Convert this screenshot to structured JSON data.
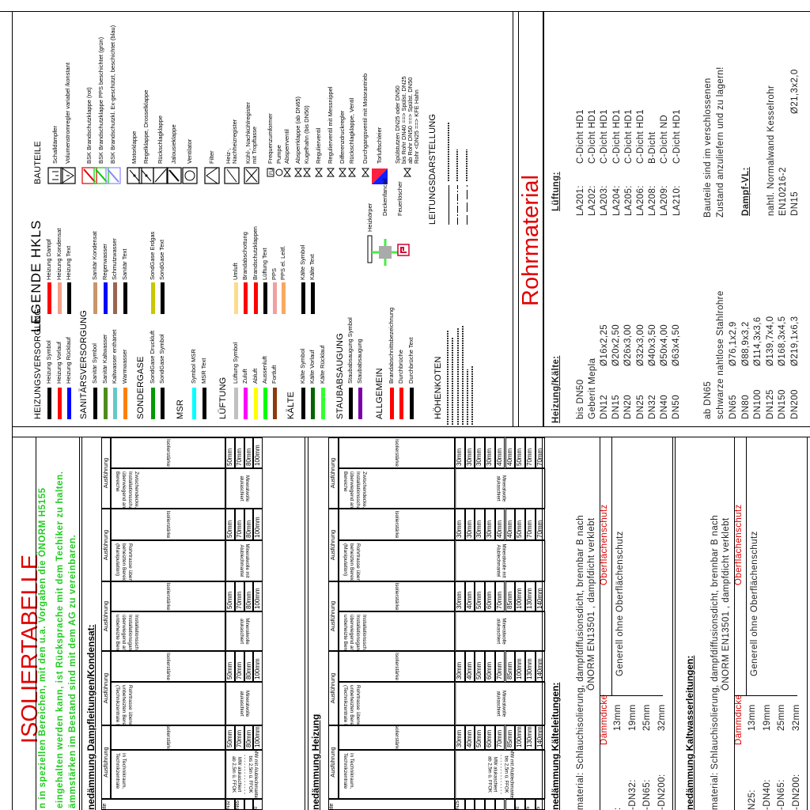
{
  "legend": {
    "title": "LEGENDE HKLS",
    "col1": [
      {
        "heading": "HEIZUNGSVERSORGUNG",
        "items": [
          {
            "label": "Heizung Symbol",
            "color": "#000000"
          },
          {
            "label": "Heizung Vorlauf",
            "color": "#ff0000"
          },
          {
            "label": "Heizung Rücklauf",
            "color": "#0000ff"
          }
        ]
      },
      {
        "heading": "SANITÄRSVERSORGUNG",
        "items": [
          {
            "label": "Sanitär Symbol",
            "color": "#000000"
          },
          {
            "label": "Sanitär Kaltwasser",
            "color": "#4c8c1c"
          },
          {
            "label": "Kaltwasser enthärtet",
            "color": "#66c8c8"
          },
          {
            "label": "Warmwasser",
            "color": "#ff8000"
          }
        ]
      },
      {
        "heading": "SONDERGASE",
        "items": [
          {
            "label": "SondGase Druckluft",
            "color": "#009a00"
          },
          {
            "label": "SondGase Symbol",
            "color": "#000000"
          }
        ]
      },
      {
        "heading": "MSR",
        "items": [
          {
            "label": "Symbol MSR",
            "color": "#00ffff"
          },
          {
            "label": "MSR Text",
            "color": "#000000"
          }
        ]
      },
      {
        "heading": "LÜFTUNG",
        "items": [
          {
            "label": "Lüftung Symbol",
            "color": "#c0c0c0"
          },
          {
            "label": "Zuluft",
            "color": "#ff00ff"
          },
          {
            "label": "Abluft",
            "color": "#ffff00"
          },
          {
            "label": "Aussenluft",
            "color": "#00ff00"
          },
          {
            "label": "Fortluft",
            "color": "#8c3a0c"
          }
        ]
      },
      {
        "heading": "KÄLTE",
        "items": [
          {
            "label": "Kälte Symbol",
            "color": "#000000"
          },
          {
            "label": "Kälte Vorlauf",
            "color": "#006400"
          },
          {
            "label": "Kälte Rücklauf",
            "color": "#33ff33"
          }
        ]
      },
      {
        "heading": "STAUBABSAUGUNG",
        "items": [
          {
            "label": "Staubabsaugung Symbol",
            "color": "#000000"
          },
          {
            "label": "Staubabsaugung",
            "color": "#7a00a8"
          }
        ]
      },
      {
        "heading": "ALLGEMEIN",
        "items": [
          {
            "label": "Brandabschnittsbezeichnung",
            "color": "#ff0000"
          },
          {
            "label": "Durchbrüche",
            "color": "#ff0000"
          },
          {
            "label": "Durchbrüche Text",
            "color": "#000000"
          }
        ]
      },
      {
        "heading": "HÖHENKOTEN",
        "items": []
      }
    ],
    "col2": [
      {
        "label": "Heizung Dampf",
        "color": "#ff0000"
      },
      {
        "label": "Heizung Kondensat",
        "color": "#f4a088"
      },
      {
        "label": "Heizung Text",
        "color": "#000000"
      },
      {
        "label": "Sanitär Kondensat",
        "color": "#c8966a"
      },
      {
        "label": "Regenwasser",
        "color": "#0000ff"
      },
      {
        "label": "Schmutzwasser",
        "color": "#9c6450"
      },
      {
        "label": "Sanitär Text",
        "color": "#000000"
      },
      {
        "label": "SondGase Erdgas",
        "color": "#c8c800"
      },
      {
        "label": "SondGase Text",
        "color": "#000000"
      },
      {
        "label": "Umluft",
        "color": "#fcdc8c"
      },
      {
        "label": "Brandabschottung",
        "color": "#ff0000"
      },
      {
        "label": "Brandschutzklappen",
        "color": "#ff0000"
      },
      {
        "label": "Lüftung Text",
        "color": "#000000"
      },
      {
        "label": "PPS",
        "color": "#f0a0a0"
      },
      {
        "label": "PPS el. Leitf.",
        "color": "#f8a860"
      },
      {
        "label": "Kälte Symbol",
        "color": "#000000"
      },
      {
        "label": "Kälte Text",
        "color": "#000000"
      }
    ],
    "bauteile_heading": "BAUTEILE",
    "bauteile": [
      {
        "label": "Schalldämpfer",
        "icon": "silencer-icon"
      },
      {
        "label": "Volumenstromregler variabel /konstant",
        "icon": "vav-icon"
      },
      {
        "label": "BSK Brandschutzklappe (rot)",
        "icon": "fire-damper-icon",
        "color": "#e00000"
      },
      {
        "label": "BSK Brandschutzklappe PPS beschichtet (grün)",
        "icon": "fire-damper-icon",
        "color": "#00cc00"
      },
      {
        "label": "BSK Brandschutzkl. Ex-geschützt, beschichtet (blau)",
        "icon": "fire-damper-icon",
        "color": "#8888ff"
      },
      {
        "label": "Motorklappe",
        "icon": "motor-damper-icon"
      },
      {
        "label": "Regelklappe, Drosselklappe",
        "icon": "damper-icon"
      },
      {
        "label": "Rückschlagklappe",
        "icon": "check-damper-icon"
      },
      {
        "label": "Jalousieklappe",
        "icon": "louver-icon"
      },
      {
        "label": "Ventilator",
        "icon": "fan-icon"
      },
      {
        "label": "Filter",
        "icon": "filter-icon"
      },
      {
        "label": "Heiz-,\nNachheizregister",
        "icon": "heater-coil-icon"
      },
      {
        "label": "Kühl-, Nachkühlregister\nmit Tropftasse",
        "icon": "cooler-coil-icon"
      },
      {
        "label": "Frequenzumformer",
        "icon": "fu-icon"
      },
      {
        "label": "Pumpe",
        "icon": "pump-icon"
      },
      {
        "label": "Absperrventil",
        "icon": "valve-icon"
      },
      {
        "label": "Absperrklappe (ab DN65)",
        "icon": "butterfly-valve-icon"
      },
      {
        "label": "Kugelhahn (bis DN50)",
        "icon": "ball-valve-icon"
      },
      {
        "label": "Regulierventil",
        "icon": "regulating-valve-icon"
      },
      {
        "label": "Regulierventil mit Messnippel",
        "icon": "regulating-valve-icon"
      },
      {
        "label": "Differenzdruckregler",
        "icon": "dp-regulator-icon"
      },
      {
        "label": "Rückschlagklappe, Ventil",
        "icon": "check-valve-icon"
      },
      {
        "label": "Durchgangsventil mit Motorantrieb",
        "icon": "motor-valve-icon"
      },
      {
        "label": "Torluftschleier",
        "icon": "air-curtain-icon"
      },
      {
        "label": "Spülstutzen DN25 oder DN50\nbis Rohr DN40 ==> Spülst. DN25\nab Rohr DN50 ==> Spülst. DN50\nRohr <DN25 ==> KFE Hahn",
        "icon": "flush-valve-icon"
      }
    ],
    "misc": [
      {
        "label": "Heizkörper",
        "icon": "radiator-icon"
      },
      {
        "label": "Deckenfancoil",
        "icon": "fancoil-icon"
      },
      {
        "label": "Feuerlöscher",
        "icon": "extinguisher-icon"
      }
    ],
    "leitung_heading": "LEITUNGSDARSTELLUNG",
    "leitung_styles": [
      "solid",
      "dash-dot",
      "dashed"
    ]
  },
  "rohrmaterial": {
    "title": "Rohrmaterial",
    "heizung_heading": "Heizung/Kälte:",
    "bis_dn50": "bis DN50",
    "geberit": "Geberit Mepla",
    "mepla_rows": [
      [
        "DN12",
        "Ø16x2,25"
      ],
      [
        "DN15",
        "Ø20x2,50"
      ],
      [
        "DN20",
        "Ø26x3,00"
      ],
      [
        "DN25",
        "Ø32x3,00"
      ],
      [
        "DN32",
        "Ø40x3,50"
      ],
      [
        "DN40",
        "Ø50x4,00"
      ],
      [
        "DN50",
        "Ø63x4,50"
      ]
    ],
    "ab_dn65": "ab DN65",
    "stahl": "schwarze nahtlose Stahlrohre",
    "stahl_rows": [
      [
        "DN65",
        "Ø76,1x2,9"
      ],
      [
        "DN80",
        "Ø88,9x3,2"
      ],
      [
        "DN100",
        "Ø114,3x3,6"
      ],
      [
        "DN125",
        "Ø139,7x4,0"
      ],
      [
        "DN150",
        "Ø168,3x4,5"
      ],
      [
        "DN200",
        "Ø219,1x6,3"
      ]
    ],
    "lueftung_heading": "Lüftung:",
    "lueftung_rows": [
      [
        "LA201:",
        "C-Dicht HD1"
      ],
      [
        "LA202:",
        "C-Dicht HD1"
      ],
      [
        "LA203:",
        "C-Dicht HD1"
      ],
      [
        "LA204:",
        "C-Dicht HD1"
      ],
      [
        "LA205:",
        "C-Dicht HD1"
      ],
      [
        "LA206:",
        "C-Dicht HD1"
      ],
      [
        "LA208:",
        "B-Dicht"
      ],
      [
        "LA209:",
        "C-Dicht ND"
      ],
      [
        "LA210:",
        "C-Dicht HD1"
      ]
    ],
    "bauteile_note_1": "Bauteile sind im verschlossenen",
    "bauteile_note_2": "Zustand anzuliefern und zu lagern!",
    "dampf_heading": "Dampf-VL:",
    "dampf_1": "nahtl. Normalwand Kesselrohr",
    "dampf_2": "EN10216-2",
    "dampf_row": [
      "DN15",
      "Ø21,3x2,0"
    ]
  },
  "isolier": {
    "title": "ISOLIERTABELLE",
    "notes": [
      "n in speziellen Bereichen, mit den u.a. Vorgaben die ÖNORM H5155",
      "eingehalten werden kann, ist Rücksprache mit dem Techiker zu halten.",
      "ämmstärken im Bestand sind mit dem AG zu vereinbaren."
    ],
    "col_header": "Ausführung",
    "isol_label": "Isolierstärke",
    "stub_header": "ite",
    "tables": [
      {
        "heading": "nedämmung Dampfleitungen/Kondensat:",
        "stub": [
          "N32",
          "N65",
          "",
          "0"
        ],
        "groups": [
          {
            "desc": "in Technikraum,\nTechnikzentrale",
            "material": "MW mit Alublechmantel\nbis 2,5m ü. FFOK\n- - - - - - - - - - - - - -\nMW alukaschiert\nab 2,5m ü. FFOK",
            "values": [
              "50mm",
              "70mm",
              "80mm",
              "100mm"
            ]
          },
          {
            "desc": "Rohrtrasse überwiegend in\nunbeheizten Bereichen\n(Technikzentrale Lüftung)",
            "material": "Mineralwolle\nalukaschiert",
            "values": [
              "50mm",
              "70mm",
              "80mm",
              "100mm"
            ]
          },
          {
            "desc": "Installationsschacht,\nInstallationsgang grenzt\nüberwiegend an\nunbeheizte Bereiche",
            "material": "Mineralwolle\nalukaschiert",
            "values": [
              "50mm",
              "70mm",
              "80mm",
              "100mm"
            ]
          },
          {
            "desc": "Rohrtrasse überwiegend in\nbeheizten Bereichen\n(Manipulation)",
            "material": "Mineralwolle mit\nAlublechmantel",
            "values": [
              "50mm",
              "70mm",
              "80mm",
              "100mm"
            ]
          },
          {
            "desc": "Zwischendecke, Doppelboden,\nInstallationsschacht, grenzt\nüberwiegend an beheizte\nBereiche",
            "material": "Mineralwolle\nalukaschiert",
            "values": [
              "50mm",
              "70mm",
              "80mm",
              "100mm"
            ]
          }
        ]
      },
      {
        "heading": "nedämmung Heizung",
        "stub": [
          "N25",
          "",
          "",
          "",
          "",
          "",
          "0",
          "5",
          "5"
        ],
        "groups": [
          {
            "desc": "in Technikraum,\nTechnikzentrale",
            "material": "MW mit Alublechmantel\nbis 2,5m ü. FFOK\n- - - - - - - - - - - - - -\nMW alukaschiert\nab 2,5m ü. FFOK",
            "values": [
              "30mm",
              "40mm",
              "50mm",
              "60mm",
              "70mm",
              "85mm",
              "100mm",
              "130mm",
              "140mm"
            ]
          },
          {
            "desc": "Rohrtrasse überwiegend in\nunbeheizten Bereichen\n(Technikzentrale Lüftung)",
            "material": "Mineralwolle\nalukaschiert",
            "values": [
              "30mm",
              "40mm",
              "50mm",
              "60mm",
              "70mm",
              "85mm",
              "100mm",
              "130mm",
              "140mm"
            ]
          },
          {
            "desc": "Installationsschacht,\nInstallationsgang grenzt\nüberwiegend an\nunbeheizte Bereiche",
            "material": "Mineralwolle\nalukaschiert",
            "values": [
              "30mm",
              "40mm",
              "50mm",
              "60mm",
              "70mm",
              "85mm",
              "100mm",
              "130mm",
              "140mm"
            ]
          },
          {
            "desc": "Rohrtrasse überwiegend in\nbeheizten Bereichen\n(Manipulation)",
            "material": "Mineralwolle mit\nAlublechmantel",
            "values": [
              "30mm",
              "30mm",
              "30mm",
              "30mm",
              "40mm",
              "40mm",
              "50mm",
              "70mm",
              "70mm"
            ]
          },
          {
            "desc": "Zwischendecke, Doppelboden,\nInstallationsschacht, grenzt\nüberwiegend an beheizte\nBereiche",
            "material": "Mineralwolle\nalukaschiert",
            "values": [
              "30mm",
              "30mm",
              "30mm",
              "30mm",
              "40mm",
              "40mm",
              "50mm",
              "70mm",
              "70mm"
            ]
          }
        ]
      }
    ],
    "sections": [
      {
        "heading": "nedämmung Kälteleitungen:",
        "material_1": "material: Schlauchisolierung, dampfdiffusionsdicht, brennbar B nach",
        "material_2": "ÖNORM EN13501 , dampfdicht verklebt",
        "col_thickness": "Dämmdicke",
        "col_surface": "Oberflächenschutz",
        "surface_value": "Generell ohne Oberflächenschutz",
        "rows": [
          [
            ":",
            "13mm"
          ],
          [
            "-DN32:",
            "19mm"
          ],
          [
            "-DN65:",
            "25mm"
          ],
          [
            "-DN200:",
            "32mm"
          ]
        ]
      },
      {
        "heading": "nedämmung Kaltwasserleitungen:",
        "material_1": "material: Schlauchisolierung, dampfdiffusionsdicht, brennbar B nach",
        "material_2": "ÖNORM EN13501 , dampfdicht verklebt",
        "col_thickness": "Dämmdicke",
        "col_surface": "Oberflächenschutz",
        "surface_value": "Generell ohne Oberflächenschutz",
        "rows": [
          [
            "N25:",
            "13mm"
          ],
          [
            "-DN40:",
            "19mm"
          ],
          [
            "-DN65:",
            "25mm"
          ],
          [
            "-DN200:",
            "32mm"
          ]
        ]
      }
    ]
  }
}
